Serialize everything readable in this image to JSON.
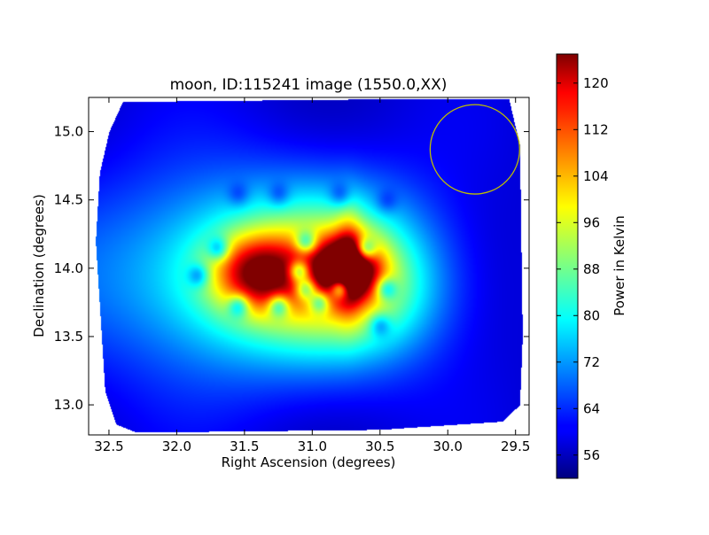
{
  "chart_data": {
    "type": "heatmap",
    "title": "moon, ID:115241 image (1550.0,XX)",
    "xlabel": "Right Ascension (degrees)",
    "ylabel": "Declination (degrees)",
    "xlim": [
      32.65,
      29.4
    ],
    "ylim": [
      12.78,
      15.25
    ],
    "x_ticks": [
      32.5,
      32.0,
      31.5,
      31.0,
      30.5,
      30.0,
      29.5
    ],
    "x_tick_labels": [
      "32.5",
      "32.0",
      "31.5",
      "31.0",
      "30.5",
      "30.0",
      "29.5"
    ],
    "y_ticks": [
      13.0,
      13.5,
      14.0,
      14.5,
      15.0
    ],
    "y_tick_labels": [
      "13.0",
      "13.5",
      "14.0",
      "14.5",
      "15.0"
    ],
    "colorbar": {
      "label": "Power in Kelvin",
      "range": [
        52,
        125
      ],
      "ticks": [
        56,
        64,
        72,
        80,
        88,
        96,
        104,
        112,
        120
      ],
      "tick_labels": [
        "56",
        "64",
        "72",
        "80",
        "88",
        "96",
        "104",
        "112",
        "120"
      ],
      "colormap": "jet"
    },
    "background_level": 60,
    "sources": [
      {
        "ra": 31.85,
        "dec": 13.95,
        "sigma_ra": 0.9,
        "sigma_dec": 0.55,
        "amp": 13
      },
      {
        "ra": 31.3,
        "dec": 13.95,
        "sigma_ra": 0.55,
        "sigma_dec": 0.42,
        "amp": 22
      },
      {
        "ra": 30.7,
        "dec": 13.95,
        "sigma_ra": 0.45,
        "sigma_dec": 0.42,
        "amp": 24
      },
      {
        "ra": 31.4,
        "dec": 13.97,
        "sigma_ra": 0.22,
        "sigma_dec": 0.18,
        "amp": 34
      },
      {
        "ra": 30.75,
        "dec": 14.0,
        "sigma_ra": 0.16,
        "sigma_dec": 0.15,
        "amp": 52
      },
      {
        "ra": 30.73,
        "dec": 14.05,
        "sigma_ra": 0.07,
        "sigma_dec": 0.28,
        "amp": 14
      },
      {
        "ra": 30.5,
        "dec": 13.8,
        "sigma_ra": 0.35,
        "sigma_dec": 0.3,
        "amp": 6
      }
    ],
    "dips": [
      {
        "ra": 31.55,
        "dec": 14.55
      },
      {
        "ra": 31.25,
        "dec": 14.55
      },
      {
        "ra": 30.8,
        "dec": 14.55
      },
      {
        "ra": 30.45,
        "dec": 14.5
      },
      {
        "ra": 31.7,
        "dec": 14.15
      },
      {
        "ra": 31.05,
        "dec": 14.2
      },
      {
        "ra": 30.6,
        "dec": 14.15
      },
      {
        "ra": 31.1,
        "dec": 13.98
      },
      {
        "ra": 31.05,
        "dec": 13.85
      },
      {
        "ra": 30.8,
        "dec": 13.85
      },
      {
        "ra": 30.45,
        "dec": 13.85
      },
      {
        "ra": 31.55,
        "dec": 13.72
      },
      {
        "ra": 31.25,
        "dec": 13.72
      },
      {
        "ra": 30.95,
        "dec": 13.75
      },
      {
        "ra": 31.85,
        "dec": 13.95
      },
      {
        "ra": 30.5,
        "dec": 13.58
      }
    ],
    "circle": {
      "ra": 29.8,
      "dec": 14.87,
      "radius_deg": 0.33,
      "color": "#bfbf00"
    }
  }
}
